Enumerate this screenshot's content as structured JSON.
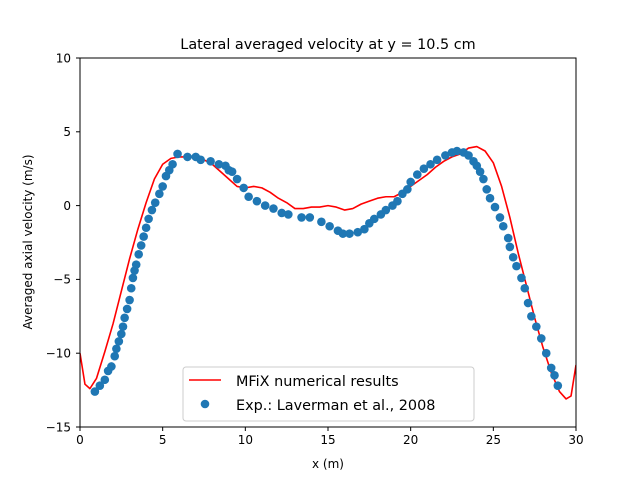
{
  "chart_data": {
    "type": "line",
    "title": "Lateral averaged velocity at y = 10.5 cm",
    "xlabel": "x (m)",
    "ylabel": "Averaged axial velocity (m/s)",
    "xlim": [
      0,
      30
    ],
    "ylim": [
      -15,
      10
    ],
    "xticks": [
      0,
      5,
      10,
      15,
      20,
      25,
      30
    ],
    "yticks": [
      -15,
      -10,
      -5,
      0,
      5,
      10
    ],
    "grid": false,
    "legend_position": "lower center",
    "series": [
      {
        "name": "MFiX numerical results",
        "kind": "line",
        "color": "#ff0000",
        "x": [
          0.0,
          0.3,
          0.6,
          1.0,
          1.5,
          2.0,
          2.5,
          3.0,
          3.5,
          4.0,
          4.5,
          5.0,
          5.5,
          6.0,
          6.5,
          7.0,
          7.5,
          8.0,
          8.5,
          9.0,
          9.5,
          10.0,
          10.5,
          11.0,
          11.5,
          12.0,
          12.5,
          13.0,
          13.5,
          14.0,
          14.5,
          15.0,
          15.5,
          16.0,
          16.5,
          17.0,
          17.5,
          18.0,
          18.5,
          19.0,
          19.5,
          20.0,
          20.5,
          21.0,
          21.5,
          22.0,
          22.5,
          23.0,
          23.5,
          24.0,
          24.5,
          25.0,
          25.5,
          26.0,
          26.5,
          27.0,
          27.5,
          28.0,
          28.5,
          29.0,
          29.4,
          29.7,
          30.0
        ],
        "y": [
          -10.0,
          -12.1,
          -12.4,
          -11.7,
          -9.9,
          -8.0,
          -5.8,
          -3.6,
          -1.6,
          0.2,
          1.8,
          2.8,
          3.2,
          3.3,
          3.3,
          3.3,
          3.1,
          2.8,
          2.3,
          1.8,
          1.3,
          1.2,
          1.3,
          1.2,
          0.9,
          0.5,
          0.2,
          -0.2,
          -0.2,
          -0.1,
          -0.1,
          0.0,
          -0.1,
          -0.3,
          -0.2,
          0.1,
          0.3,
          0.5,
          0.6,
          0.6,
          0.9,
          1.3,
          1.7,
          2.1,
          2.6,
          3.0,
          3.3,
          3.5,
          3.9,
          4.0,
          3.7,
          2.9,
          1.3,
          -0.8,
          -3.2,
          -5.4,
          -7.6,
          -9.6,
          -11.3,
          -12.6,
          -13.1,
          -12.9,
          -10.8
        ]
      },
      {
        "name": "Exp.: Laverman et al., 2008",
        "kind": "scatter",
        "color": "#1f77b4",
        "x": [
          0.9,
          1.2,
          1.5,
          1.7,
          1.9,
          2.1,
          2.2,
          2.35,
          2.5,
          2.6,
          2.7,
          2.85,
          3.0,
          3.1,
          3.2,
          3.3,
          3.4,
          3.55,
          3.7,
          3.85,
          4.0,
          4.15,
          4.35,
          4.55,
          4.8,
          5.0,
          5.2,
          5.4,
          5.6,
          5.9,
          6.5,
          7.0,
          7.3,
          7.9,
          8.4,
          8.8,
          9.0,
          9.2,
          9.5,
          9.9,
          10.2,
          10.7,
          11.2,
          11.7,
          12.2,
          12.6,
          13.4,
          13.9,
          14.6,
          15.1,
          15.6,
          15.9,
          16.3,
          16.8,
          17.2,
          17.5,
          17.8,
          18.2,
          18.5,
          18.9,
          19.2,
          19.5,
          19.8,
          20.0,
          20.4,
          20.8,
          21.2,
          21.6,
          22.1,
          22.5,
          22.8,
          23.2,
          23.5,
          23.8,
          24.0,
          24.2,
          24.4,
          24.6,
          24.8,
          25.1,
          25.4,
          25.6,
          25.9,
          26.0,
          26.2,
          26.4,
          26.7,
          26.9,
          27.1,
          27.3,
          27.6,
          27.9,
          28.2,
          28.5,
          28.7,
          28.9
        ],
        "y": [
          -12.6,
          -12.2,
          -11.8,
          -11.2,
          -10.9,
          -10.2,
          -9.7,
          -9.2,
          -8.7,
          -8.2,
          -7.6,
          -7.0,
          -6.4,
          -5.6,
          -4.9,
          -4.4,
          -4.0,
          -3.3,
          -2.7,
          -2.1,
          -1.5,
          -0.9,
          -0.3,
          0.2,
          0.8,
          1.3,
          2.0,
          2.4,
          2.8,
          3.5,
          3.3,
          3.3,
          3.1,
          3.0,
          2.8,
          2.7,
          2.4,
          2.3,
          1.8,
          1.2,
          0.6,
          0.3,
          0.0,
          -0.2,
          -0.5,
          -0.6,
          -0.8,
          -0.8,
          -1.1,
          -1.4,
          -1.7,
          -1.9,
          -1.9,
          -1.8,
          -1.6,
          -1.2,
          -0.9,
          -0.6,
          -0.3,
          0.0,
          0.3,
          0.8,
          1.1,
          1.6,
          2.1,
          2.5,
          2.8,
          3.1,
          3.4,
          3.6,
          3.7,
          3.6,
          3.4,
          3.0,
          2.7,
          2.3,
          1.8,
          1.1,
          0.5,
          -0.1,
          -0.8,
          -1.4,
          -2.2,
          -2.8,
          -3.5,
          -4.1,
          -4.9,
          -5.6,
          -6.6,
          -7.5,
          -8.2,
          -9.0,
          -10.0,
          -11.0,
          -11.5,
          -12.2
        ]
      }
    ]
  }
}
